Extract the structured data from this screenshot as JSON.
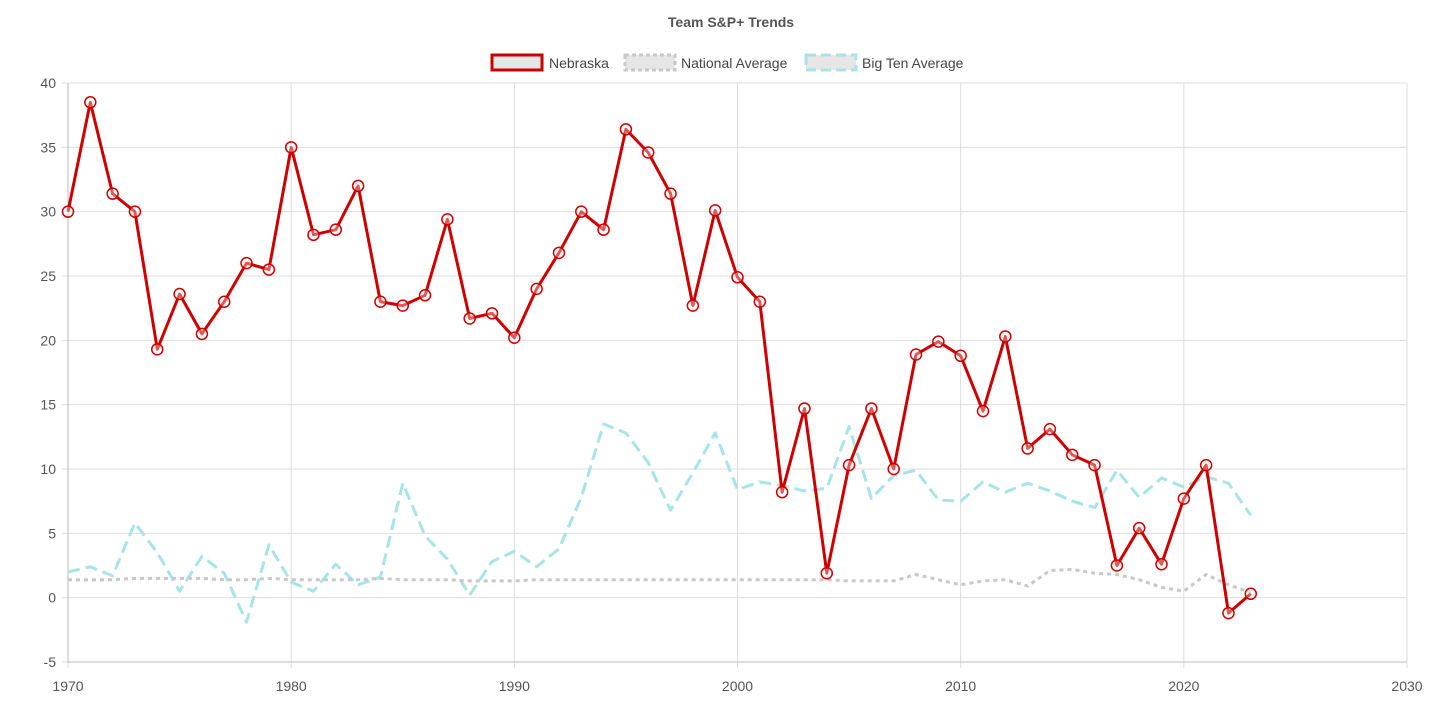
{
  "chart_data": {
    "type": "line",
    "title": "Team S&P+ Trends",
    "xlim": [
      1970,
      2030
    ],
    "ylim": [
      -5,
      40
    ],
    "x_ticks": [
      1970,
      1980,
      1990,
      2000,
      2010,
      2020,
      2030
    ],
    "y_ticks": [
      -5,
      0,
      5,
      10,
      15,
      20,
      25,
      30,
      35,
      40
    ],
    "grid": true,
    "legend_position": "top",
    "x": [
      1970,
      1971,
      1972,
      1973,
      1974,
      1975,
      1976,
      1977,
      1978,
      1979,
      1980,
      1981,
      1982,
      1983,
      1984,
      1985,
      1986,
      1987,
      1988,
      1989,
      1990,
      1991,
      1992,
      1993,
      1994,
      1995,
      1996,
      1997,
      1998,
      1999,
      2000,
      2001,
      2002,
      2003,
      2004,
      2005,
      2006,
      2007,
      2008,
      2009,
      2010,
      2011,
      2012,
      2013,
      2014,
      2015,
      2016,
      2017,
      2018,
      2019,
      2020,
      2021,
      2022,
      2023
    ],
    "series": [
      {
        "name": "Nebraska",
        "color": "#cc0000",
        "style": "solid",
        "markers": true,
        "values": [
          30.0,
          38.5,
          31.4,
          30.0,
          19.3,
          23.6,
          20.5,
          23.0,
          26.0,
          25.5,
          35.0,
          28.2,
          28.6,
          32.0,
          23.0,
          22.7,
          23.5,
          29.4,
          21.7,
          22.1,
          20.2,
          24.0,
          26.8,
          30.0,
          28.6,
          36.4,
          34.6,
          31.4,
          22.7,
          30.1,
          24.9,
          23.0,
          8.2,
          14.7,
          1.9,
          10.3,
          14.7,
          10.0,
          18.9,
          19.9,
          18.8,
          14.5,
          20.3,
          11.6,
          13.1,
          11.1,
          10.3,
          2.5,
          5.4,
          2.6,
          7.7,
          10.3,
          -1.2,
          0.3
        ]
      },
      {
        "name": "National Average",
        "color": "#c8c8c8",
        "style": "dotted",
        "markers": false,
        "values": [
          1.4,
          1.4,
          1.4,
          1.5,
          1.5,
          1.5,
          1.5,
          1.4,
          1.4,
          1.5,
          1.4,
          1.4,
          1.4,
          1.4,
          1.5,
          1.4,
          1.4,
          1.4,
          1.3,
          1.3,
          1.3,
          1.4,
          1.4,
          1.4,
          1.4,
          1.4,
          1.4,
          1.4,
          1.4,
          1.4,
          1.4,
          1.4,
          1.4,
          1.4,
          1.4,
          1.3,
          1.3,
          1.3,
          1.8,
          1.4,
          1.0,
          1.3,
          1.4,
          0.9,
          2.1,
          2.2,
          1.9,
          1.8,
          1.4,
          0.8,
          0.5,
          1.8,
          1.0,
          0.4
        ]
      },
      {
        "name": "Big Ten Average",
        "color": "#a8e4e6",
        "style": "dashed",
        "markers": false,
        "values": [
          2.0,
          2.4,
          1.7,
          5.8,
          3.5,
          0.5,
          3.2,
          1.9,
          -1.9,
          4.1,
          1.2,
          0.5,
          2.6,
          1.0,
          1.6,
          8.9,
          4.8,
          3.0,
          0.2,
          2.8,
          3.6,
          2.4,
          3.8,
          7.8,
          13.5,
          12.8,
          10.5,
          6.8,
          9.7,
          12.8,
          8.4,
          9.0,
          8.7,
          8.3,
          8.5,
          13.3,
          7.7,
          9.5,
          9.9,
          7.6,
          7.5,
          9.0,
          8.2,
          8.9,
          8.3,
          7.5,
          7.0,
          9.9,
          7.8,
          9.3,
          8.6,
          9.4,
          8.9,
          6.4
        ]
      }
    ]
  }
}
